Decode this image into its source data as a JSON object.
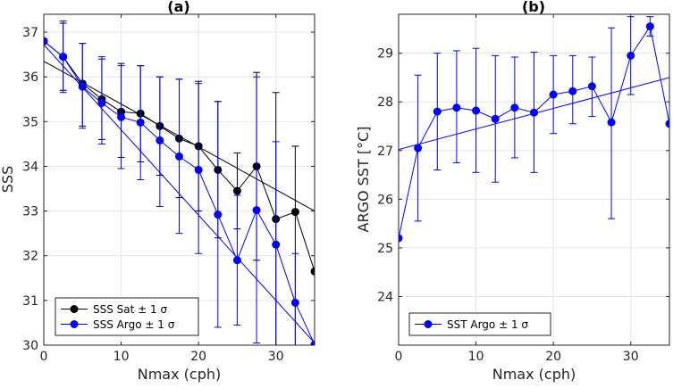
{
  "chart_data": [
    {
      "type": "line",
      "title": "(a)",
      "xlabel": "Nmax (cph)",
      "ylabel": "SSS",
      "xlim": [
        0,
        35
      ],
      "ylim": [
        30,
        37.4
      ],
      "xticks": [
        0,
        10,
        20,
        30
      ],
      "yticks": [
        30,
        31,
        32,
        33,
        34,
        35,
        36,
        37
      ],
      "grid": true,
      "legend_position": "bottom-left",
      "series": [
        {
          "name": "SSS Sat ± 1 σ",
          "color": "#000000",
          "x": [
            0,
            2.5,
            5,
            7.5,
            10,
            12.5,
            15,
            17.5,
            20,
            22.5,
            25,
            27.5,
            30,
            32.5,
            35
          ],
          "values": [
            36.8,
            36.45,
            35.85,
            35.5,
            35.22,
            35.18,
            34.9,
            34.62,
            34.45,
            33.92,
            33.45,
            34.0,
            32.82,
            32.98,
            31.65
          ],
          "err_low": [
            null,
            35.7,
            34.9,
            34.6,
            34.2,
            34.1,
            33.8,
            33.3,
            33.0,
            32.4,
            32.6,
            31.9,
            30.0,
            30.0,
            30.0
          ],
          "err_high": [
            null,
            37.2,
            36.75,
            36.4,
            36.3,
            36.25,
            36.0,
            35.95,
            35.9,
            35.45,
            34.3,
            36.1,
            35.65,
            34.45,
            31.65
          ],
          "trend": [
            36.35,
            33.0
          ]
        },
        {
          "name": "SSS Argo ± 1 σ",
          "color": "#0000ff",
          "x": [
            0,
            2.5,
            5,
            7.5,
            10,
            12.5,
            15,
            17.5,
            20,
            22.5,
            25,
            27.5,
            30,
            32.5,
            35
          ],
          "values": [
            36.8,
            36.45,
            35.78,
            35.42,
            35.1,
            34.98,
            34.58,
            34.22,
            33.92,
            32.92,
            31.9,
            33.02,
            32.25,
            30.95,
            30.02
          ],
          "err_low": [
            null,
            35.65,
            34.85,
            34.5,
            33.95,
            33.7,
            33.1,
            32.5,
            32.05,
            30.4,
            30.45,
            30.05,
            30.0,
            30.0,
            30.0
          ],
          "err_high": [
            null,
            37.25,
            36.75,
            36.45,
            36.25,
            36.25,
            36.0,
            35.95,
            35.85,
            35.45,
            33.35,
            36.0,
            34.55,
            32.05,
            30.02
          ],
          "trend": [
            36.72,
            30.05
          ]
        }
      ]
    },
    {
      "type": "line",
      "title": "(b)",
      "xlabel": "Nmax (cph)",
      "ylabel": "ARGO SST [°C]",
      "xlim": [
        0,
        35
      ],
      "ylim": [
        23,
        29.8
      ],
      "xticks": [
        0,
        10,
        20,
        30
      ],
      "yticks": [
        24,
        25,
        26,
        27,
        28,
        29
      ],
      "grid": true,
      "legend_position": "bottom-left",
      "series": [
        {
          "name": "SST Argo ± 1 σ",
          "color": "#0000ff",
          "x": [
            0,
            2.5,
            5,
            7.5,
            10,
            12.5,
            15,
            17.5,
            20,
            22.5,
            25,
            27.5,
            30,
            32.5,
            35
          ],
          "values": [
            25.2,
            27.05,
            27.8,
            27.88,
            27.82,
            27.65,
            27.88,
            27.78,
            28.15,
            28.22,
            28.32,
            27.58,
            28.95,
            29.55,
            27.55
          ],
          "err_low": [
            null,
            25.55,
            26.6,
            26.75,
            26.55,
            26.35,
            26.85,
            26.55,
            27.35,
            27.55,
            27.7,
            25.6,
            28.15,
            29.35,
            null
          ],
          "err_high": [
            null,
            28.55,
            29.0,
            29.05,
            29.1,
            28.95,
            28.92,
            29.02,
            28.95,
            28.95,
            28.92,
            29.52,
            29.75,
            29.75,
            null
          ],
          "trend": [
            27.02,
            28.5
          ]
        }
      ]
    }
  ]
}
